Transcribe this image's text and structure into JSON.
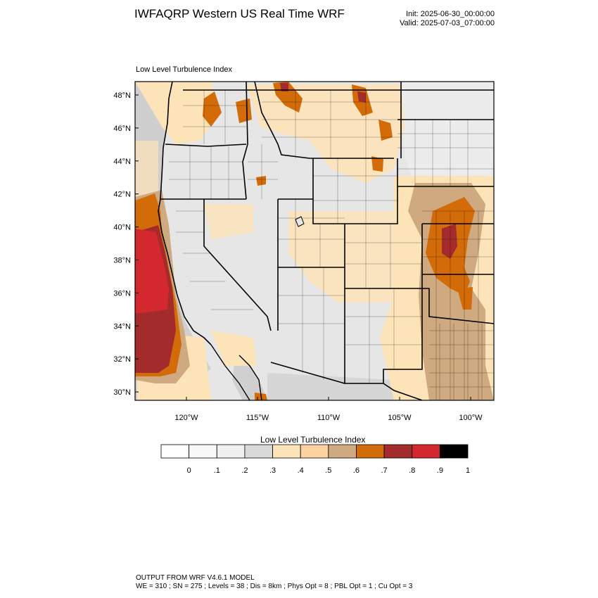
{
  "header": {
    "title": "IWFAQRP Western US Real Time WRF",
    "init": "Init: 2025-06-30_00:00:00",
    "valid": "Valid: 2025-07-03_07:00:00"
  },
  "map": {
    "field_label": "Low Level Turbulence Index",
    "lat_labels": [
      "48°N",
      "46°N",
      "44°N",
      "42°N",
      "40°N",
      "38°N",
      "36°N",
      "34°N",
      "32°N",
      "30°N"
    ],
    "lon_labels": [
      "120°W",
      "115°W",
      "110°W",
      "105°W",
      "100°W"
    ],
    "colors": {
      "water_gray": "#cfcfcf",
      "land_light": "#e6e6e6",
      "peach": "#fde3b8",
      "tan": "#cfa980",
      "orange": "#d26b08",
      "brown_red": "#a42b2b",
      "red": "#d4282f"
    }
  },
  "colorbar": {
    "title": "Low Level Turbulence Index",
    "colors": [
      "#ffffff",
      "#f8f8f8",
      "#f0f0f0",
      "#d9d9d9",
      "#fde3b8",
      "#fad3a1",
      "#cfa980",
      "#d26b08",
      "#a42b2b",
      "#d4282f",
      "#000000"
    ],
    "tick_labels": [
      "0",
      ".1",
      ".2",
      ".3",
      ".4",
      ".5",
      ".6",
      ".7",
      ".8",
      ".9",
      "1"
    ]
  },
  "footer": {
    "line1": "OUTPUT FROM WRF V4.6.1 MODEL",
    "line2": "WE = 310 ; SN = 275 ; Levels = 38 ; Dis = 8km ; Phys Opt = 8 ; PBL Opt = 1 ; Cu Opt = 3"
  }
}
